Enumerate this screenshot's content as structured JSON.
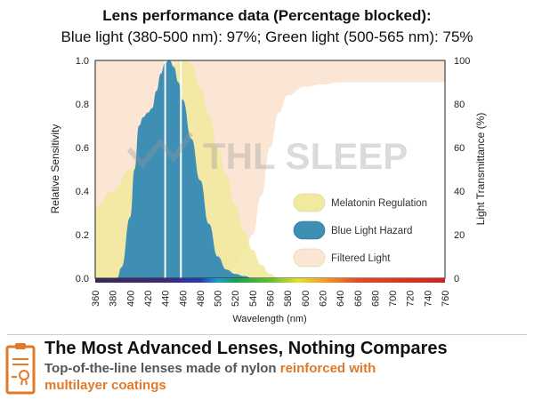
{
  "header": {
    "title": "Lens performance data (Percentage blocked):",
    "subtitle": "Blue light (380-500 nm): 97%; Green light (500-565 nm): 75%"
  },
  "chart_data": {
    "type": "area",
    "xlabel": "Wavelength (nm)",
    "ylabel": "Relative Sensitivity",
    "y2label": "Light Transmittance (%)",
    "xlim": [
      360,
      760
    ],
    "ylim": [
      0,
      1.0
    ],
    "y2lim": [
      0,
      100
    ],
    "xticks": [
      360,
      380,
      400,
      420,
      440,
      460,
      480,
      500,
      520,
      540,
      560,
      580,
      600,
      620,
      640,
      660,
      680,
      700,
      720,
      740,
      760
    ],
    "yticks": [
      "0.0",
      "0.2",
      "0.4",
      "0.6",
      "0.8",
      "1.0"
    ],
    "y2ticks": [
      "0",
      "20",
      "40",
      "60",
      "80",
      "100"
    ],
    "legend_position": "bottom-right",
    "watermark": "THL SLEEP",
    "series": [
      {
        "name": "Filtered Light",
        "color": "#fbe6d6",
        "axis": "right",
        "note_region": "above transmittance curve",
        "x": [
          360,
          500,
          510,
          520,
          530,
          540,
          550,
          560,
          570,
          580,
          600,
          620,
          640,
          760
        ],
        "y": [
          0,
          0,
          1,
          5,
          11,
          20,
          38,
          60,
          76,
          84,
          88,
          89,
          90,
          90
        ]
      },
      {
        "name": "Melatonin Regulation",
        "color": "#f2e9a0",
        "axis": "left",
        "x": [
          360,
          380,
          400,
          410,
          420,
          430,
          440,
          450,
          460,
          465,
          470,
          480,
          490,
          500,
          510,
          520,
          530,
          540,
          550,
          560,
          570
        ],
        "y": [
          0.33,
          0.4,
          0.5,
          0.57,
          0.66,
          0.78,
          0.9,
          0.98,
          1.0,
          1.0,
          0.98,
          0.88,
          0.75,
          0.6,
          0.47,
          0.34,
          0.22,
          0.13,
          0.06,
          0.02,
          0.0
        ]
      },
      {
        "name": "Blue Light Hazard",
        "color": "#3f8fb5",
        "axis": "left",
        "x": [
          385,
          390,
          400,
          405,
          410,
          415,
          420,
          425,
          430,
          435,
          440,
          445,
          450,
          455,
          460,
          470,
          480,
          490,
          500,
          510,
          520,
          530,
          540
        ],
        "y": [
          0,
          0.05,
          0.28,
          0.5,
          0.7,
          0.74,
          0.76,
          0.78,
          0.86,
          0.94,
          0.99,
          1.0,
          0.97,
          0.9,
          0.82,
          0.64,
          0.45,
          0.25,
          0.1,
          0.04,
          0.02,
          0.01,
          0
        ]
      }
    ],
    "markers_nm": [
      440,
      458
    ]
  },
  "footer": {
    "icon": "certificate-clipboard-icon",
    "accent": "#e07a2a",
    "title": "The Most Advanced Lenses, Nothing Compares",
    "subtitle_plain": "Top-of-the-line lenses made of nylon ",
    "subtitle_highlight": "reinforced with multilayer coatings"
  }
}
